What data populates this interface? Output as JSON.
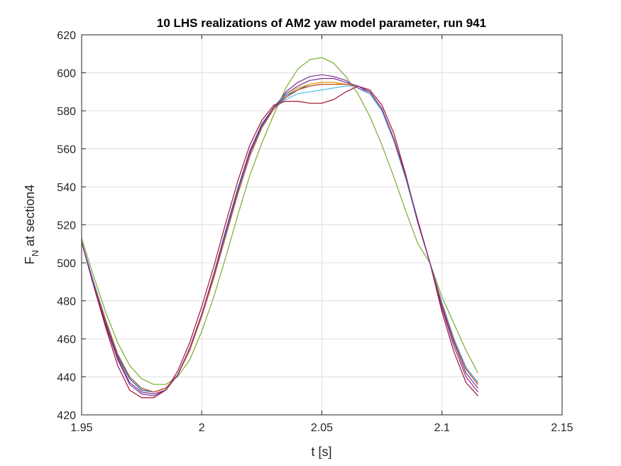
{
  "chart_data": {
    "type": "line",
    "title": "10 LHS realizations of AM2 yaw model parameter, run 941",
    "xlabel": "t [s]",
    "ylabel": {
      "main": "F",
      "sub": "N",
      "rest": " at section4"
    },
    "xlim": [
      1.95,
      2.15
    ],
    "ylim": [
      420,
      620
    ],
    "xticks": [
      1.95,
      2.0,
      2.05,
      2.1,
      2.15
    ],
    "xtick_labels": [
      "1.95",
      "2",
      "2.05",
      "2.1",
      "2.15"
    ],
    "yticks": [
      420,
      440,
      460,
      480,
      500,
      520,
      540,
      560,
      580,
      600,
      620
    ],
    "ytick_labels": [
      "420",
      "440",
      "460",
      "480",
      "500",
      "520",
      "540",
      "560",
      "580",
      "600",
      "620"
    ],
    "grid": true,
    "x": [
      1.95,
      1.955,
      1.96,
      1.965,
      1.97,
      1.975,
      1.98,
      1.985,
      1.99,
      1.995,
      2.0,
      2.005,
      2.01,
      2.015,
      2.02,
      2.025,
      2.03,
      2.035,
      2.04,
      2.045,
      2.05,
      2.055,
      2.06,
      2.065,
      2.07,
      2.075,
      2.08,
      2.085,
      2.09,
      2.095,
      2.1,
      2.105,
      2.11,
      2.115
    ],
    "series": [
      {
        "color": "#0072BD",
        "values": [
          511,
          490,
          470,
          452,
          440,
          434,
          432,
          434,
          441,
          455,
          472,
          492,
          515,
          537,
          557,
          572,
          581,
          587,
          591,
          594,
          595,
          595,
          594,
          593,
          590,
          581,
          565,
          545,
          522,
          500,
          479,
          460,
          445,
          437
        ]
      },
      {
        "color": "#D95319",
        "values": [
          511,
          489,
          469,
          451,
          439,
          433,
          432,
          434,
          441,
          454,
          472,
          492,
          515,
          537,
          557,
          572,
          581,
          588,
          592,
          594,
          595,
          595,
          594,
          593,
          590,
          581,
          565,
          545,
          522,
          500,
          478,
          459,
          444,
          436
        ]
      },
      {
        "color": "#EDB120",
        "values": [
          511,
          489,
          469,
          451,
          439,
          433,
          432,
          434,
          441,
          454,
          472,
          492,
          515,
          537,
          557,
          572,
          581,
          588,
          592,
          594,
          595,
          595,
          594,
          593,
          590,
          581,
          565,
          545,
          522,
          500,
          478,
          459,
          444,
          436
        ]
      },
      {
        "color": "#7E2F8E",
        "values": [
          511,
          488,
          467,
          449,
          436,
          431,
          430,
          433,
          441,
          455,
          473,
          494,
          517,
          539,
          559,
          573,
          581,
          590,
          595,
          598,
          599,
          598,
          596,
          592,
          589,
          580,
          564,
          544,
          521,
          500,
          476,
          456,
          440,
          432
        ]
      },
      {
        "color": "#77AC30",
        "values": [
          513,
          493,
          474,
          458,
          446,
          439,
          436,
          436,
          440,
          449,
          464,
          482,
          503,
          525,
          546,
          563,
          578,
          592,
          602,
          607,
          608,
          605,
          598,
          589,
          577,
          562,
          545,
          527,
          510,
          500,
          482,
          468,
          454,
          442
        ]
      },
      {
        "color": "#4DBEEE",
        "values": [
          511,
          490,
          470,
          452,
          440,
          434,
          432,
          434,
          441,
          455,
          472,
          492,
          515,
          537,
          557,
          572,
          581,
          586,
          589,
          590,
          591,
          592,
          593,
          593,
          589,
          580,
          564,
          544,
          521,
          500,
          479,
          460,
          445,
          437
        ]
      },
      {
        "color": "#A2142F",
        "values": [
          511,
          488,
          466,
          446,
          433,
          429,
          429,
          433,
          443,
          458,
          477,
          498,
          521,
          543,
          562,
          575,
          583,
          585,
          585,
          584,
          584,
          586,
          590,
          593,
          591,
          583,
          568,
          546,
          521,
          500,
          474,
          453,
          437,
          430
        ]
      },
      {
        "color": "#0072BD",
        "values": [
          511,
          489,
          469,
          451,
          439,
          433,
          432,
          434,
          441,
          455,
          473,
          493,
          516,
          538,
          558,
          572,
          581,
          588,
          591,
          593,
          594,
          594,
          594,
          593,
          590,
          581,
          565,
          545,
          522,
          500,
          478,
          459,
          444,
          436
        ]
      },
      {
        "color": "#D95319",
        "values": [
          511,
          489,
          470,
          452,
          440,
          434,
          432,
          434,
          441,
          454,
          472,
          492,
          514,
          536,
          556,
          571,
          581,
          587,
          591,
          593,
          594,
          594,
          594,
          593,
          590,
          581,
          565,
          545,
          522,
          500,
          478,
          459,
          444,
          436
        ]
      },
      {
        "color": "#7E2F8E",
        "values": [
          511,
          489,
          468,
          450,
          437,
          432,
          431,
          433,
          441,
          455,
          473,
          494,
          517,
          539,
          558,
          573,
          582,
          589,
          593,
          596,
          597,
          597,
          595,
          593,
          590,
          581,
          565,
          545,
          522,
          500,
          477,
          458,
          442,
          434
        ]
      }
    ]
  }
}
